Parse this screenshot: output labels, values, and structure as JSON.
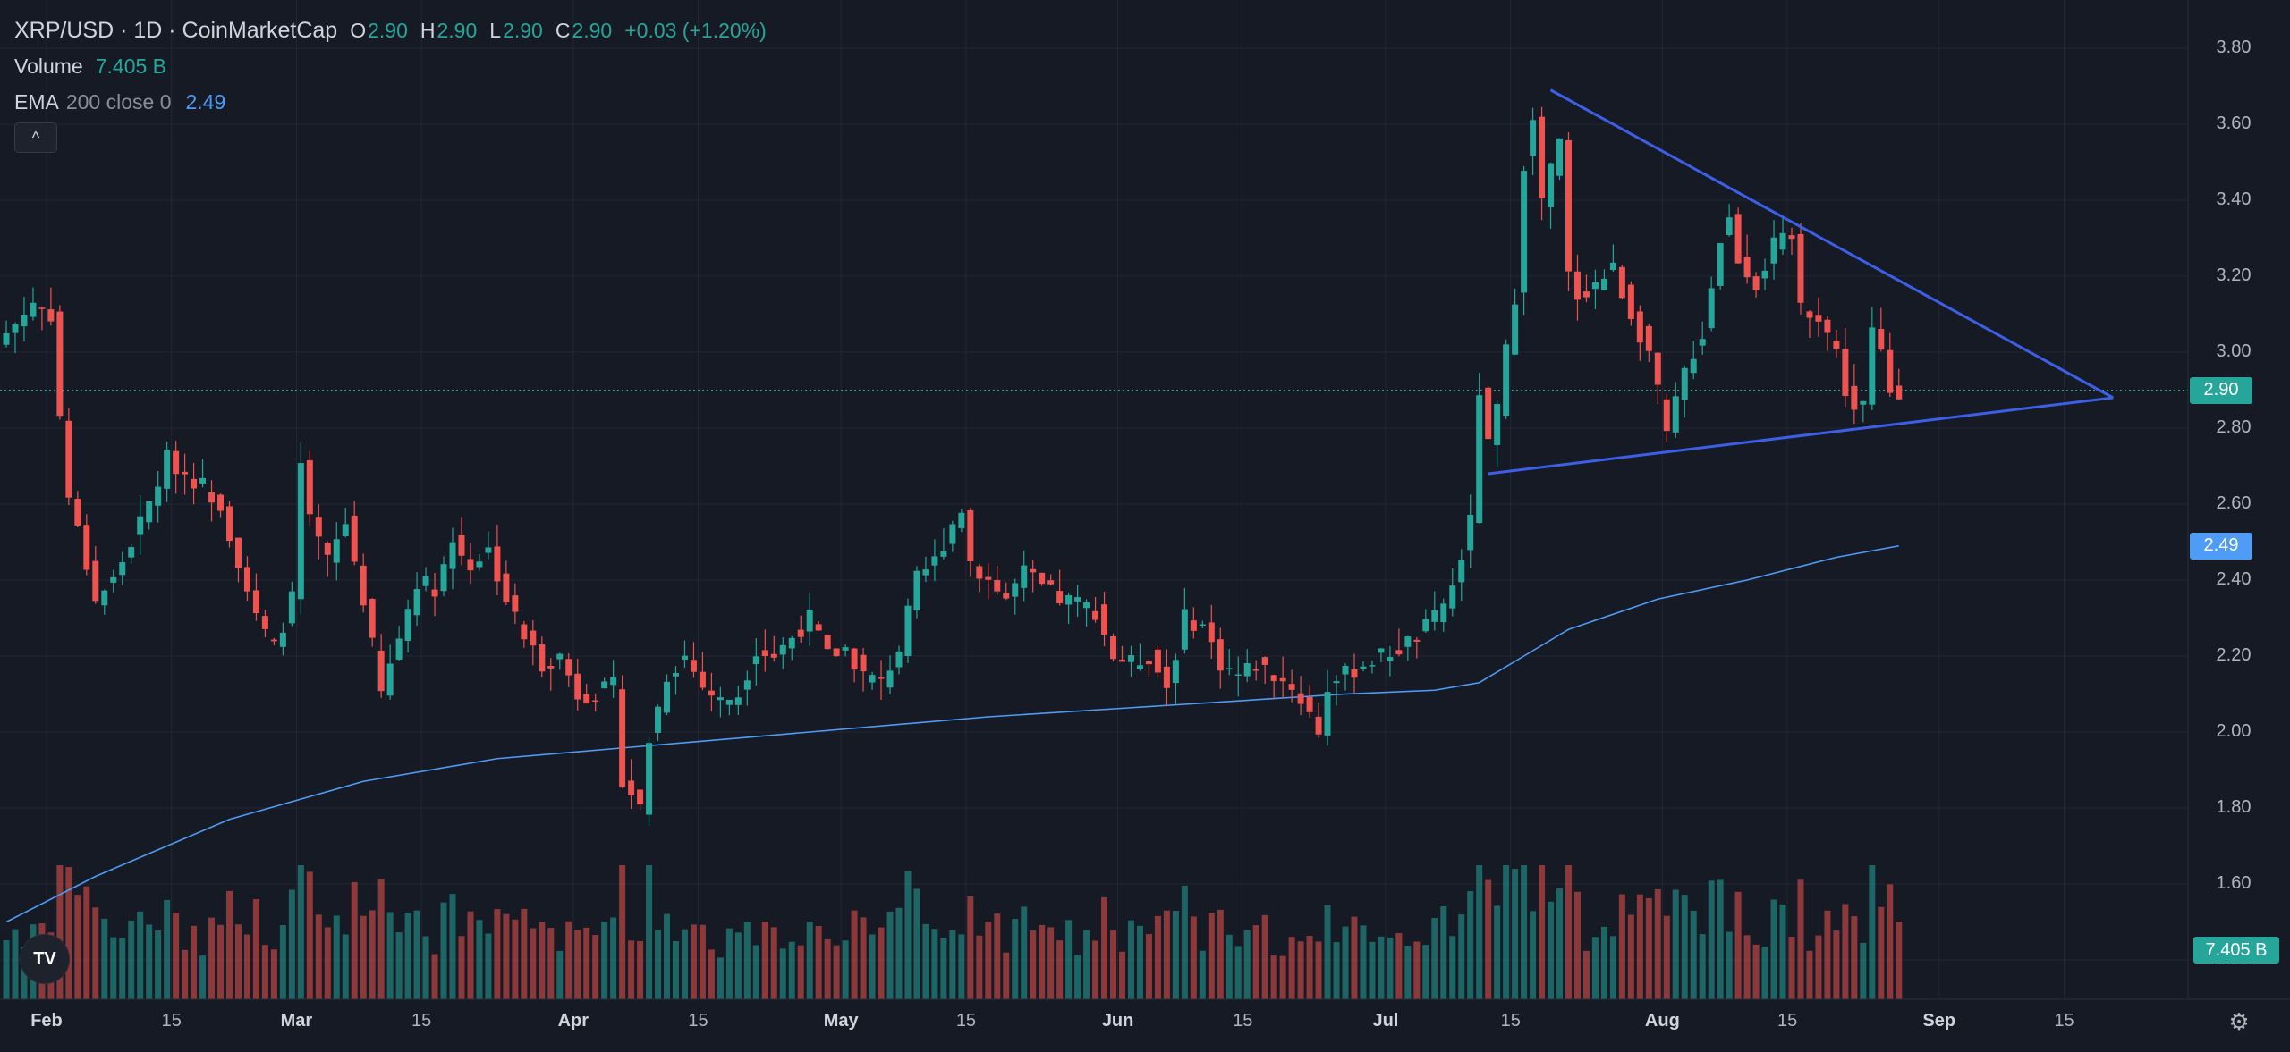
{
  "header": {
    "symbol": "XRP/USD · 1D · CoinMarketCap",
    "ohlc": [
      {
        "label": "O",
        "value": "2.90"
      },
      {
        "label": "H",
        "value": "2.90"
      },
      {
        "label": "L",
        "value": "2.90"
      },
      {
        "label": "C",
        "value": "2.90"
      }
    ],
    "change": "+0.03 (+1.20%)",
    "volume_name": "Volume",
    "volume_value": "7.405 B",
    "ema_name": "EMA",
    "ema_params": "200 close 0",
    "ema_value": "2.49",
    "collapse_icon": "^"
  },
  "colors": {
    "background": "#161a25",
    "up": "#26a69a",
    "down": "#ef5350",
    "ema": "#4f9cf6",
    "trendline": "#3d5ee6",
    "grid": "#232733"
  },
  "price_badges": {
    "last": "2.90",
    "ema": "2.49",
    "volume": "7.405 B"
  },
  "logo_text": "TV",
  "settings_icon": "⚙",
  "chart_data": {
    "type": "candlestick",
    "interval": "1D",
    "y_ticks": [
      "1.40",
      "1.60",
      "1.80",
      "2.00",
      "2.20",
      "2.40",
      "2.60",
      "2.80",
      "3.00",
      "3.20",
      "3.40",
      "3.60",
      "3.80"
    ],
    "ylim": [
      1.3,
      3.86
    ],
    "x_ticks": [
      {
        "label": "Feb",
        "month": true
      },
      {
        "label": "15",
        "month": false
      },
      {
        "label": "Mar",
        "month": true
      },
      {
        "label": "15",
        "month": false
      },
      {
        "label": "Apr",
        "month": true
      },
      {
        "label": "15",
        "month": false
      },
      {
        "label": "May",
        "month": true
      },
      {
        "label": "15",
        "month": false
      },
      {
        "label": "Jun",
        "month": true
      },
      {
        "label": "15",
        "month": false
      },
      {
        "label": "Jul",
        "month": true
      },
      {
        "label": "15",
        "month": false
      },
      {
        "label": "Aug",
        "month": true
      },
      {
        "label": "15",
        "month": false
      },
      {
        "label": "Sep",
        "month": true
      },
      {
        "label": "15",
        "month": false
      }
    ],
    "price_path": [
      [
        0,
        3.05
      ],
      [
        3,
        3.13
      ],
      [
        5,
        3.1
      ],
      [
        6,
        2.83
      ],
      [
        7,
        2.62
      ],
      [
        10,
        2.35
      ],
      [
        12,
        2.4
      ],
      [
        16,
        2.6
      ],
      [
        18,
        2.72
      ],
      [
        20,
        2.68
      ],
      [
        22,
        2.65
      ],
      [
        24,
        2.6
      ],
      [
        26,
        2.45
      ],
      [
        28,
        2.3
      ],
      [
        30,
        2.22
      ],
      [
        32,
        2.35
      ],
      [
        33,
        2.7
      ],
      [
        34,
        2.55
      ],
      [
        36,
        2.45
      ],
      [
        38,
        2.55
      ],
      [
        40,
        2.35
      ],
      [
        42,
        2.1
      ],
      [
        44,
        2.25
      ],
      [
        46,
        2.4
      ],
      [
        48,
        2.38
      ],
      [
        50,
        2.5
      ],
      [
        52,
        2.44
      ],
      [
        54,
        2.48
      ],
      [
        56,
        2.35
      ],
      [
        58,
        2.25
      ],
      [
        60,
        2.18
      ],
      [
        62,
        2.2
      ],
      [
        64,
        2.1
      ],
      [
        66,
        2.1
      ],
      [
        68,
        2.12
      ],
      [
        69,
        1.88
      ],
      [
        71,
        1.8
      ],
      [
        72,
        1.98
      ],
      [
        74,
        2.15
      ],
      [
        76,
        2.2
      ],
      [
        78,
        2.12
      ],
      [
        80,
        2.08
      ],
      [
        82,
        2.1
      ],
      [
        84,
        2.22
      ],
      [
        86,
        2.2
      ],
      [
        88,
        2.25
      ],
      [
        90,
        2.3
      ],
      [
        92,
        2.2
      ],
      [
        94,
        2.22
      ],
      [
        96,
        2.15
      ],
      [
        98,
        2.13
      ],
      [
        100,
        2.22
      ],
      [
        102,
        2.4
      ],
      [
        104,
        2.45
      ],
      [
        106,
        2.55
      ],
      [
        107,
        2.59
      ],
      [
        108,
        2.45
      ],
      [
        110,
        2.4
      ],
      [
        112,
        2.35
      ],
      [
        114,
        2.42
      ],
      [
        116,
        2.38
      ],
      [
        118,
        2.35
      ],
      [
        120,
        2.34
      ],
      [
        122,
        2.32
      ],
      [
        124,
        2.2
      ],
      [
        126,
        2.18
      ],
      [
        128,
        2.2
      ],
      [
        130,
        2.12
      ],
      [
        132,
        2.3
      ],
      [
        134,
        2.28
      ],
      [
        136,
        2.18
      ],
      [
        138,
        2.15
      ],
      [
        140,
        2.18
      ],
      [
        142,
        2.15
      ],
      [
        144,
        2.12
      ],
      [
        146,
        2.05
      ],
      [
        147,
        2.0
      ],
      [
        148,
        2.12
      ],
      [
        150,
        2.15
      ],
      [
        152,
        2.18
      ],
      [
        154,
        2.2
      ],
      [
        156,
        2.22
      ],
      [
        158,
        2.25
      ],
      [
        160,
        2.3
      ],
      [
        162,
        2.38
      ],
      [
        164,
        2.55
      ],
      [
        165,
        2.9
      ],
      [
        166,
        2.75
      ],
      [
        167,
        2.85
      ],
      [
        168,
        3.0
      ],
      [
        169,
        3.15
      ],
      [
        170,
        3.5
      ],
      [
        171,
        3.6
      ],
      [
        172,
        3.4
      ],
      [
        173,
        3.48
      ],
      [
        174,
        3.55
      ],
      [
        175,
        3.2
      ],
      [
        176,
        3.15
      ],
      [
        178,
        3.18
      ],
      [
        180,
        3.22
      ],
      [
        182,
        3.1
      ],
      [
        184,
        3.0
      ],
      [
        186,
        2.78
      ],
      [
        188,
        2.95
      ],
      [
        190,
        3.05
      ],
      [
        192,
        3.3
      ],
      [
        193,
        3.35
      ],
      [
        194,
        3.25
      ],
      [
        196,
        3.18
      ],
      [
        198,
        3.28
      ],
      [
        200,
        3.3
      ],
      [
        201,
        3.12
      ],
      [
        203,
        3.1
      ],
      [
        205,
        3.0
      ],
      [
        206,
        2.9
      ],
      [
        207,
        2.85
      ],
      [
        208,
        2.86
      ],
      [
        209,
        3.05
      ],
      [
        210,
        3.0
      ],
      [
        211,
        2.9
      ],
      [
        212,
        2.9
      ]
    ],
    "ema_path": [
      [
        0,
        1.5
      ],
      [
        10,
        1.62
      ],
      [
        25,
        1.77
      ],
      [
        34,
        1.83
      ],
      [
        40,
        1.87
      ],
      [
        55,
        1.93
      ],
      [
        70,
        1.96
      ],
      [
        90,
        2.0
      ],
      [
        110,
        2.04
      ],
      [
        130,
        2.07
      ],
      [
        150,
        2.1
      ],
      [
        160,
        2.11
      ],
      [
        165,
        2.13
      ],
      [
        170,
        2.2
      ],
      [
        175,
        2.27
      ],
      [
        185,
        2.35
      ],
      [
        195,
        2.4
      ],
      [
        205,
        2.46
      ],
      [
        212,
        2.49
      ]
    ],
    "trendlines": [
      {
        "name": "upper",
        "from": [
          173,
          3.69
        ],
        "to": [
          236,
          2.88
        ]
      },
      {
        "name": "lower",
        "from": [
          166,
          2.68
        ],
        "to": [
          236,
          2.88
        ]
      }
    ],
    "last_price": 2.9,
    "ema_last": 2.49,
    "volume_last": "7.405 B"
  }
}
